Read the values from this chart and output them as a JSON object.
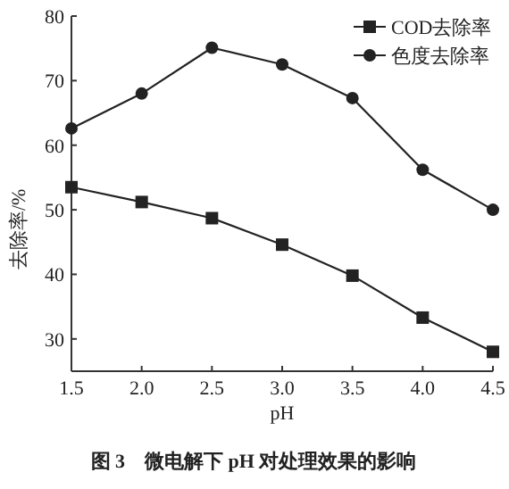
{
  "chart_data": {
    "type": "line",
    "title": "图 3　微电解下 pH 对处理效果的影响",
    "xlabel": "pH",
    "ylabel": "去除率/%",
    "x": [
      1.5,
      2.0,
      2.5,
      3.0,
      3.5,
      4.0,
      4.5
    ],
    "series": [
      {
        "name": "COD去除率",
        "color": "#222222",
        "marker": "square",
        "values": [
          53.5,
          51.2,
          48.7,
          44.6,
          39.8,
          33.3,
          28.0
        ]
      },
      {
        "name": "色度去除率",
        "color": "#222222",
        "marker": "circle",
        "values": [
          62.6,
          68.0,
          75.1,
          72.5,
          67.3,
          56.2,
          50.0
        ]
      }
    ],
    "xlim": [
      1.5,
      4.5
    ],
    "xticks": [
      {
        "value": 1.5,
        "label": "1.5"
      },
      {
        "value": 2.0,
        "label": "2.0"
      },
      {
        "value": 2.5,
        "label": "2.5"
      },
      {
        "value": 3.0,
        "label": "3.0"
      },
      {
        "value": 3.5,
        "label": "3.5"
      },
      {
        "value": 4.0,
        "label": "4.0"
      },
      {
        "value": 4.5,
        "label": "4.5"
      }
    ],
    "ylim": [
      25,
      80
    ],
    "yticks": [
      30,
      40,
      50,
      60,
      70,
      80
    ],
    "grid": false,
    "legend": "top right",
    "line_style": "solid"
  }
}
